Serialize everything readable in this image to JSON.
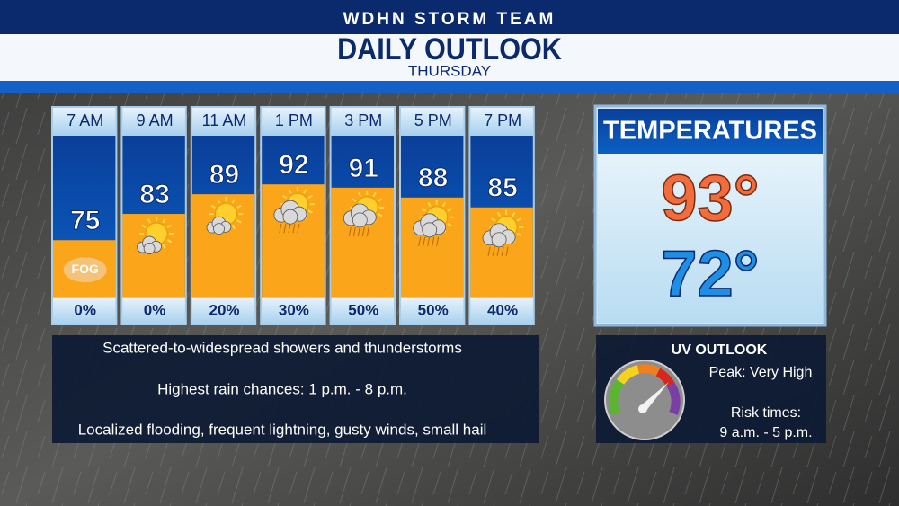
{
  "header": {
    "station": "WDHN STORM TEAM",
    "title": "DAILY OUTLOOK",
    "day": "THURSDAY"
  },
  "hourly": [
    {
      "time": "7 AM",
      "temp": 75,
      "icon": "FOG",
      "rain": "0%"
    },
    {
      "time": "9 AM",
      "temp": 83,
      "rain": "0%"
    },
    {
      "time": "11 AM",
      "temp": 89,
      "rain": "20%"
    },
    {
      "time": "1 PM",
      "temp": 92,
      "rain": "30%"
    },
    {
      "time": "3 PM",
      "temp": 91,
      "rain": "50%"
    },
    {
      "time": "5 PM",
      "temp": 88,
      "rain": "50%"
    },
    {
      "time": "7 PM",
      "temp": 85,
      "rain": "40%"
    }
  ],
  "temperatures": {
    "title": "TEMPERATURES",
    "high": "93°",
    "low": "72°"
  },
  "notes": [
    "Scattered-to-widespread showers and thunderstorms",
    "Highest rain chances: 1 p.m. - 8 p.m.",
    "Localized flooding, frequent lightning, gusty winds, small hail"
  ],
  "uv": {
    "title": "UV OUTLOOK",
    "peak": "Peak: Very High",
    "risk_label": "Risk times:",
    "risk_times": "9 a.m. - 5 p.m."
  }
}
